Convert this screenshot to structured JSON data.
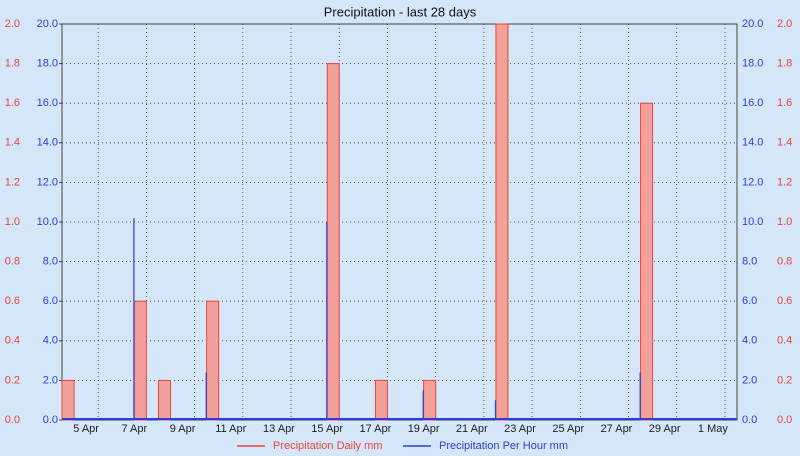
{
  "chart_data": {
    "type": "bar",
    "title": "Precipitation - last 28 days",
    "categories": [
      null,
      "5 Apr",
      null,
      "7 Apr",
      null,
      "9 Apr",
      null,
      "11 Apr",
      null,
      "13 Apr",
      null,
      "15 Apr",
      null,
      "17 Apr",
      null,
      "19 Apr",
      null,
      "21 Apr",
      null,
      "23 Apr",
      null,
      "25 Apr",
      null,
      "27 Apr",
      null,
      "29 Apr",
      null,
      "1 May"
    ],
    "series": [
      {
        "name": "Precipitation Daily mm",
        "color": "#e8453c",
        "axis": "y",
        "values": [
          0.2,
          0,
          0,
          0.6,
          0.2,
          0,
          0.6,
          0,
          0,
          0,
          0,
          1.8,
          0,
          0.2,
          0,
          0.2,
          0,
          0,
          2.0,
          0,
          0,
          0,
          0,
          0,
          1.6,
          0,
          0,
          0
        ]
      },
      {
        "name": "Precipitation Per Hour mm",
        "color": "#2b3fd6",
        "axis": "y2",
        "values": [
          0,
          0,
          0,
          10.2,
          0,
          0,
          2.4,
          0,
          0,
          0,
          0,
          10,
          0,
          0,
          0,
          1.5,
          0,
          0,
          1.0,
          0,
          0,
          0,
          0,
          0,
          2.4,
          0,
          0,
          0
        ]
      }
    ],
    "ylim": [
      0,
      2
    ],
    "yticks": [
      {
        "value": 0,
        "label": "0.0"
      },
      0.2,
      0.4,
      0.6,
      0.8,
      {
        "value": 1,
        "label": "1.0"
      },
      1.2,
      1.4,
      1.6,
      1.8,
      {
        "value": 2,
        "label": "2.0"
      }
    ],
    "y2lim": [
      0,
      20
    ],
    "y2ticks": [
      {
        "value": 0,
        "label": "0.0"
      },
      {
        "value": 2,
        "label": "2.0"
      },
      {
        "value": 4,
        "label": "4.0"
      },
      {
        "value": 6,
        "label": "6.0"
      },
      {
        "value": 8,
        "label": "8.0"
      },
      {
        "value": 10,
        "label": "10.0"
      },
      {
        "value": 12,
        "label": "12.0"
      },
      {
        "value": 14,
        "label": "14.0"
      },
      {
        "value": 16,
        "label": "16.0"
      },
      {
        "value": 18,
        "label": "18.0"
      },
      {
        "value": 20,
        "label": "20.0"
      }
    ],
    "grid": true
  }
}
